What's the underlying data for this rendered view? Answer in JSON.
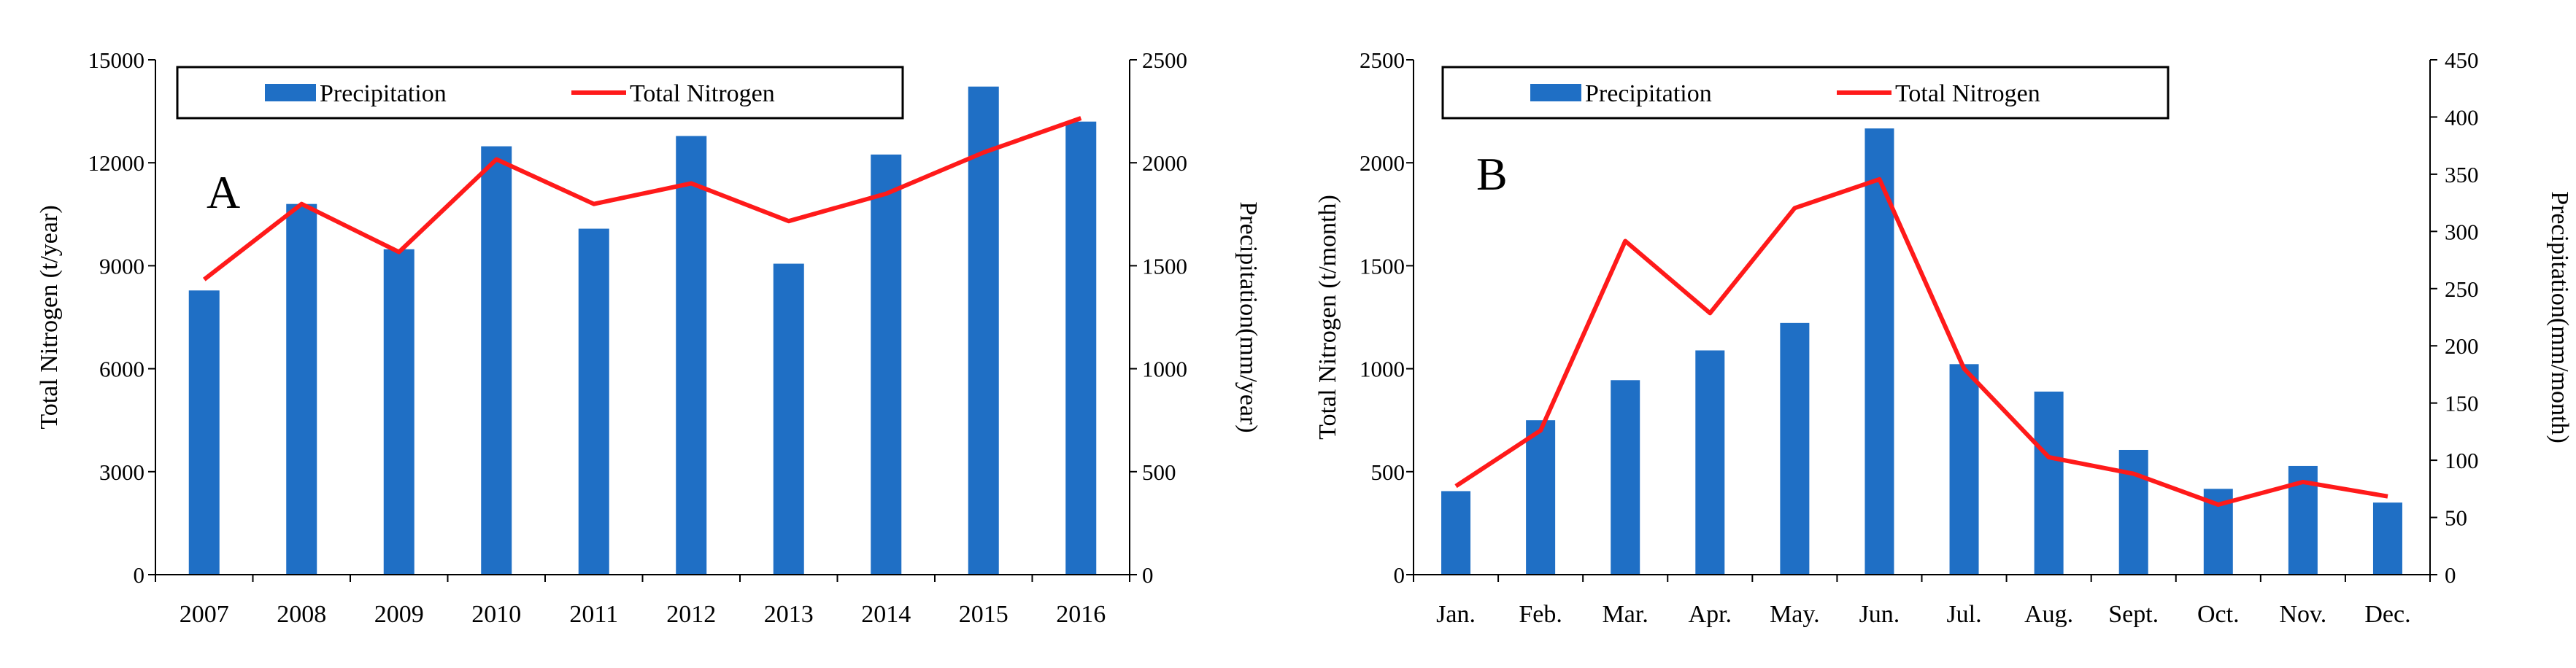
{
  "colors": {
    "bar": "#1f6fc5",
    "line": "#ff1a1a",
    "axis": "#000000",
    "background": "#ffffff"
  },
  "chart_data": [
    {
      "type": "bar",
      "panel_label": "A",
      "categories": [
        "2007",
        "2008",
        "2009",
        "2010",
        "2011",
        "2012",
        "2013",
        "2014",
        "2015",
        "2016"
      ],
      "series": [
        {
          "name": "Precipitation",
          "type": "bar",
          "axis": "right",
          "values": [
            1380,
            1800,
            1580,
            2080,
            1680,
            2130,
            1510,
            2040,
            2370,
            2200
          ]
        },
        {
          "name": "Total Nitrogen",
          "type": "line",
          "axis": "left",
          "values": [
            8600,
            10800,
            9400,
            12100,
            10800,
            11400,
            10300,
            11100,
            12300,
            13300
          ]
        }
      ],
      "ylabel_left": "Total Nitrogen (t/year)",
      "ylabel_right": "Precipitation(mm/year)",
      "ylim_left": [
        0,
        15000
      ],
      "yticks_left": [
        "0",
        "3000",
        "6000",
        "9000",
        "12000",
        "15000"
      ],
      "ylim_right": [
        0,
        2500
      ],
      "yticks_right": [
        "0",
        "500",
        "1000",
        "1500",
        "2000",
        "2500"
      ],
      "grid": false,
      "legend_position": "top"
    },
    {
      "type": "bar",
      "panel_label": "B",
      "categories": [
        "Jan.",
        "Feb.",
        "Mar.",
        "Apr.",
        "May.",
        "Jun.",
        "Jul.",
        "Aug.",
        "Sept.",
        "Oct.",
        "Nov.",
        "Dec."
      ],
      "series": [
        {
          "name": "Precipitation",
          "type": "bar",
          "axis": "right",
          "values": [
            73,
            135,
            170,
            196,
            220,
            390,
            184,
            160,
            109,
            75,
            95,
            63
          ]
        },
        {
          "name": "Total Nitrogen",
          "type": "line",
          "axis": "left",
          "values": [
            430,
            700,
            1620,
            1270,
            1780,
            1920,
            1000,
            570,
            490,
            340,
            450,
            380
          ]
        }
      ],
      "ylabel_left": "Total Nitrogen (t/month)",
      "ylabel_right": "Precipitation(mm/month)",
      "ylim_left": [
        0,
        2500
      ],
      "yticks_left": [
        "0",
        "500",
        "1000",
        "1500",
        "2000",
        "2500"
      ],
      "ylim_right": [
        0,
        450
      ],
      "yticks_right": [
        "0",
        "50",
        "100",
        "150",
        "200",
        "250",
        "300",
        "350",
        "400",
        "450"
      ],
      "grid": false,
      "legend_position": "top"
    }
  ]
}
